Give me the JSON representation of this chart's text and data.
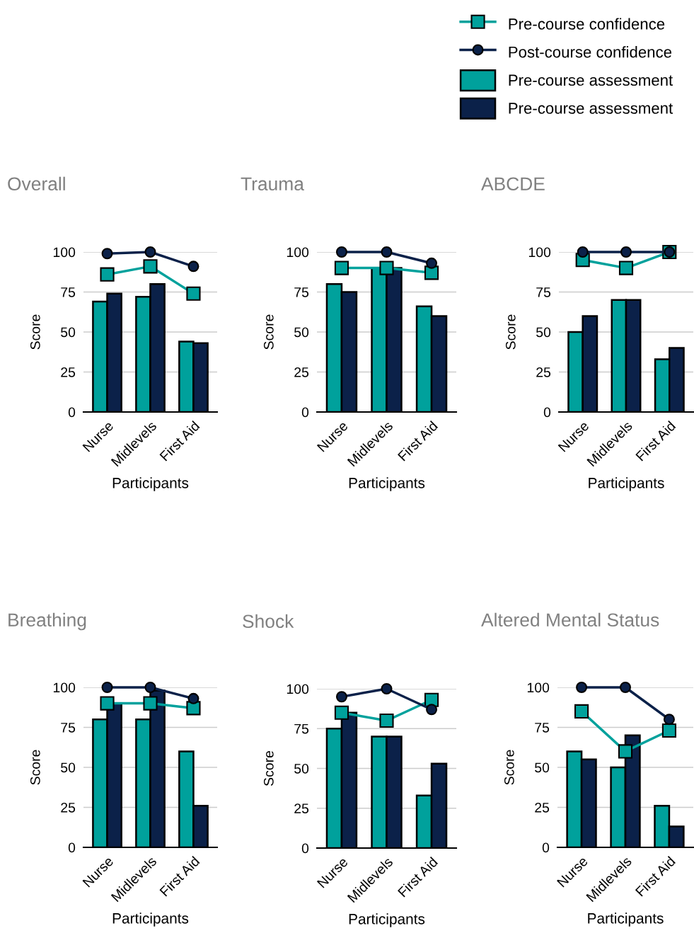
{
  "chart_data": [
    {
      "type": "bar",
      "title": "Overall",
      "xlabel": "Participants",
      "ylabel": "Score",
      "categories": [
        "Nurse",
        "Midlevels",
        "First Aid"
      ],
      "ylim": [
        0,
        100
      ],
      "yticks": [
        0,
        25,
        50,
        75,
        100
      ],
      "grid": "y",
      "series": [
        {
          "type": "line",
          "color": "#00a19c",
          "marker": "square",
          "values": [
            86,
            91,
            74
          ]
        },
        {
          "type": "line",
          "color": "#0b2149",
          "marker": "circle",
          "values": [
            99,
            100,
            91
          ]
        },
        {
          "type": "bar",
          "color": "#00a19c",
          "values": [
            69,
            72,
            44
          ]
        },
        {
          "type": "bar",
          "color": "#0b2149",
          "values": [
            74,
            80,
            43
          ]
        }
      ]
    },
    {
      "type": "bar",
      "title": "Trauma",
      "xlabel": "Participants",
      "ylabel": "Score",
      "categories": [
        "Nurse",
        "Midlevels",
        "First Aid"
      ],
      "ylim": [
        0,
        100
      ],
      "yticks": [
        0,
        25,
        50,
        75,
        100
      ],
      "grid": "y",
      "series": [
        {
          "type": "line",
          "color": "#00a19c",
          "marker": "square",
          "values": [
            90,
            90,
            87
          ]
        },
        {
          "type": "line",
          "color": "#0b2149",
          "marker": "circle",
          "values": [
            100,
            100,
            93
          ]
        },
        {
          "type": "bar",
          "color": "#00a19c",
          "values": [
            80,
            90,
            66
          ]
        },
        {
          "type": "bar",
          "color": "#0b2149",
          "values": [
            75,
            90,
            60
          ]
        }
      ]
    },
    {
      "type": "bar",
      "title": "ABCDE",
      "xlabel": "Participants",
      "ylabel": "Score",
      "categories": [
        "Nurse",
        "Midlevels",
        "First Aid"
      ],
      "ylim": [
        0,
        100
      ],
      "yticks": [
        0,
        25,
        50,
        75,
        100
      ],
      "grid": "y",
      "legend": "top",
      "series": [
        {
          "type": "line",
          "name": "Pre-course confidence",
          "color": "#00a19c",
          "marker": "square",
          "values": [
            95,
            90,
            100
          ]
        },
        {
          "type": "line",
          "name": "Post-course confidence",
          "color": "#0b2149",
          "marker": "circle",
          "values": [
            100,
            100,
            100
          ]
        },
        {
          "type": "bar",
          "name": "Pre-course assessment",
          "color": "#00a19c",
          "values": [
            50,
            70,
            33
          ]
        },
        {
          "type": "bar",
          "name": "Pre-course assessment",
          "color": "#0b2149",
          "values": [
            60,
            70,
            40
          ]
        }
      ]
    },
    {
      "type": "bar",
      "title": "Breathing",
      "xlabel": "Participants",
      "ylabel": "Score",
      "categories": [
        "Nurse",
        "Midlevels",
        "First Aid"
      ],
      "ylim": [
        0,
        100
      ],
      "yticks": [
        0,
        25,
        50,
        75,
        100
      ],
      "grid": "y",
      "series": [
        {
          "type": "line",
          "color": "#00a19c",
          "marker": "square",
          "values": [
            90,
            90,
            87
          ]
        },
        {
          "type": "line",
          "color": "#0b2149",
          "marker": "circle",
          "values": [
            100,
            100,
            93
          ]
        },
        {
          "type": "bar",
          "color": "#00a19c",
          "values": [
            80,
            80,
            60
          ]
        },
        {
          "type": "bar",
          "color": "#0b2149",
          "values": [
            90,
            98,
            26
          ]
        }
      ]
    },
    {
      "type": "bar",
      "title": "Shock",
      "xlabel": "Participants",
      "ylabel": "Score",
      "categories": [
        "Nurse",
        "Midlevels",
        "First Aid"
      ],
      "ylim": [
        0,
        100
      ],
      "yticks": [
        0,
        25,
        50,
        75,
        100
      ],
      "grid": "y",
      "series": [
        {
          "type": "line",
          "color": "#00a19c",
          "marker": "square",
          "values": [
            85,
            80,
            93
          ]
        },
        {
          "type": "line",
          "color": "#0b2149",
          "marker": "circle",
          "values": [
            95,
            100,
            87
          ]
        },
        {
          "type": "bar",
          "color": "#00a19c",
          "values": [
            75,
            70,
            33
          ]
        },
        {
          "type": "bar",
          "color": "#0b2149",
          "values": [
            85,
            70,
            53
          ]
        }
      ]
    },
    {
      "type": "bar",
      "title": "Altered Mental Status",
      "xlabel": "Participants",
      "ylabel": "Score",
      "categories": [
        "Nurse",
        "Midlevels",
        "First Aid"
      ],
      "ylim": [
        0,
        100
      ],
      "yticks": [
        0,
        25,
        50,
        75,
        100
      ],
      "grid": "y",
      "series": [
        {
          "type": "line",
          "color": "#00a19c",
          "marker": "square",
          "values": [
            85,
            60,
            73
          ]
        },
        {
          "type": "line",
          "color": "#0b2149",
          "marker": "circle",
          "values": [
            100,
            100,
            80
          ]
        },
        {
          "type": "bar",
          "color": "#00a19c",
          "values": [
            60,
            50,
            26
          ]
        },
        {
          "type": "bar",
          "color": "#0b2149",
          "values": [
            55,
            70,
            13
          ]
        }
      ]
    }
  ]
}
